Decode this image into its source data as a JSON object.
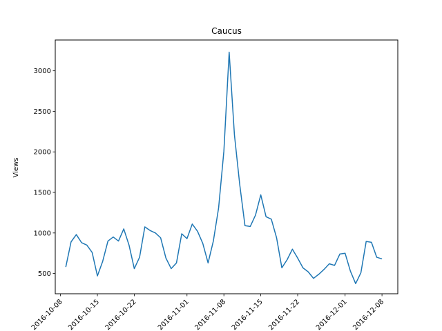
{
  "chart_data": {
    "type": "line",
    "title": "Caucus",
    "xlabel": "",
    "ylabel": "Views",
    "grid": false,
    "legend": "none",
    "x_tick_labels": [
      "2016-10-08",
      "2016-10-15",
      "2016-10-22",
      "2016-11-01",
      "2016-11-08",
      "2016-11-15",
      "2016-11-22",
      "2016-12-01",
      "2016-12-08"
    ],
    "x_ticks": [
      "2016-10-08",
      "2016-10-15",
      "2016-10-22",
      "2016-11-01",
      "2016-11-08",
      "2016-11-15",
      "2016-11-22",
      "2016-12-01",
      "2016-12-08"
    ],
    "y_ticks": [
      500,
      1000,
      1500,
      2000,
      2500,
      3000
    ],
    "xlim": [
      "2016-10-07",
      "2016-12-11"
    ],
    "ylim": [
      250,
      3380
    ],
    "series": [
      {
        "color": "#1f77b4",
        "x": [
          "2016-10-09",
          "2016-10-10",
          "2016-10-11",
          "2016-10-12",
          "2016-10-13",
          "2016-10-14",
          "2016-10-15",
          "2016-10-16",
          "2016-10-17",
          "2016-10-18",
          "2016-10-19",
          "2016-10-20",
          "2016-10-21",
          "2016-10-22",
          "2016-10-23",
          "2016-10-24",
          "2016-10-25",
          "2016-10-26",
          "2016-10-27",
          "2016-10-28",
          "2016-10-29",
          "2016-10-30",
          "2016-10-31",
          "2016-11-01",
          "2016-11-02",
          "2016-11-03",
          "2016-11-04",
          "2016-11-05",
          "2016-11-06",
          "2016-11-07",
          "2016-11-08",
          "2016-11-09",
          "2016-11-10",
          "2016-11-11",
          "2016-11-12",
          "2016-11-13",
          "2016-11-14",
          "2016-11-15",
          "2016-11-16",
          "2016-11-17",
          "2016-11-18",
          "2016-11-19",
          "2016-11-20",
          "2016-11-21",
          "2016-11-22",
          "2016-11-23",
          "2016-11-24",
          "2016-11-25",
          "2016-11-26",
          "2016-11-27",
          "2016-11-28",
          "2016-11-29",
          "2016-11-30",
          "2016-12-01",
          "2016-12-02",
          "2016-12-03",
          "2016-12-04",
          "2016-12-05",
          "2016-12-06",
          "2016-12-07",
          "2016-12-08"
        ],
        "values": [
          580,
          890,
          980,
          880,
          850,
          760,
          470,
          650,
          900,
          950,
          900,
          1050,
          850,
          560,
          700,
          1075,
          1030,
          1000,
          940,
          690,
          560,
          630,
          990,
          930,
          1110,
          1020,
          870,
          630,
          900,
          1310,
          2010,
          3230,
          2210,
          1600,
          1090,
          1080,
          1220,
          1470,
          1200,
          1170,
          940,
          570,
          670,
          800,
          690,
          570,
          520,
          440,
          490,
          550,
          620,
          600,
          740,
          750,
          530,
          375,
          510,
          895,
          885,
          700,
          680
        ]
      }
    ]
  }
}
